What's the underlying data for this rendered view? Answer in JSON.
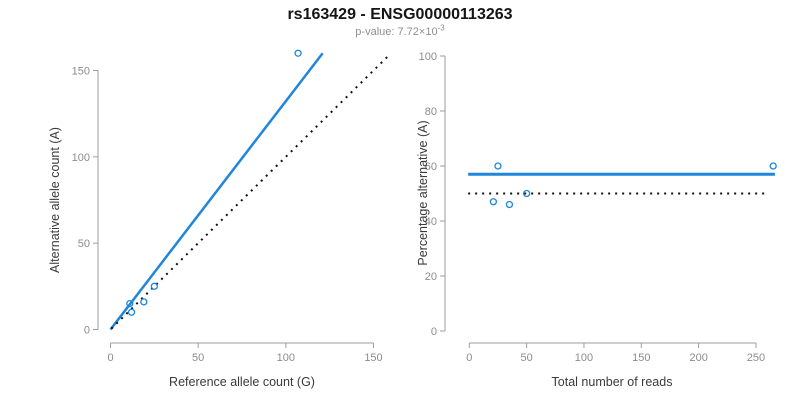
{
  "header": {
    "title": "rs163429 - ENSG00000113263",
    "subtitle_prefix": "p-value: 7.72×10",
    "subtitle_exponent": "-3"
  },
  "colors": {
    "accent_blue": "#1f86dc",
    "line_black": "#111111",
    "axis_line": "#9e9e9e",
    "tick_label": "#8c8c8c",
    "axis_title": "#3a3a3a",
    "title_black": "#151515",
    "subtitle_gray": "#8f8f8f"
  },
  "chart_data": [
    {
      "type": "scatter",
      "panel": "left",
      "xlabel": "Reference allele count (G)",
      "ylabel": "Alternative allele count (A)",
      "x_ticks": [
        0,
        50,
        100,
        150
      ],
      "y_ticks": [
        0,
        50,
        100,
        150
      ],
      "xlim": [
        0,
        157
      ],
      "ylim": [
        0,
        162
      ],
      "grid": false,
      "legend": false,
      "marker": "open-circle",
      "points": [
        [
          11,
          15
        ],
        [
          12,
          10
        ],
        [
          19,
          16
        ],
        [
          25,
          25
        ],
        [
          107,
          160
        ]
      ],
      "lines": [
        {
          "name": "fit-line",
          "style": "solid",
          "color": "#1f86dc",
          "width": 2.5,
          "x": [
            0,
            121
          ],
          "y": [
            0,
            160
          ]
        },
        {
          "name": "identity-line",
          "style": "dotted",
          "color": "#111111",
          "width": 2,
          "x": [
            0.5,
            158.5
          ],
          "y": [
            0.5,
            158.5
          ]
        }
      ]
    },
    {
      "type": "scatter",
      "panel": "right",
      "xlabel": "Total number of reads",
      "ylabel": "Percentage alternative (A)",
      "x_ticks": [
        0,
        50,
        100,
        150,
        200,
        250
      ],
      "y_ticks": [
        0,
        20,
        40,
        60,
        80,
        100
      ],
      "xlim": [
        0,
        268
      ],
      "ylim": [
        0,
        100
      ],
      "grid": false,
      "legend": false,
      "marker": "open-circle",
      "points": [
        [
          21,
          47
        ],
        [
          25,
          60
        ],
        [
          35,
          46
        ],
        [
          50,
          50
        ],
        [
          265,
          60
        ]
      ],
      "lines": [
        {
          "name": "fit-line",
          "style": "solid",
          "color": "#1f86dc",
          "width": 3,
          "x": [
            -1,
            266.5
          ],
          "y": [
            57,
            57
          ]
        },
        {
          "name": "fifty-percent-line",
          "style": "dotted",
          "color": "#111111",
          "width": 2,
          "x": [
            -1,
            261
          ],
          "y": [
            50,
            50
          ]
        }
      ]
    }
  ]
}
